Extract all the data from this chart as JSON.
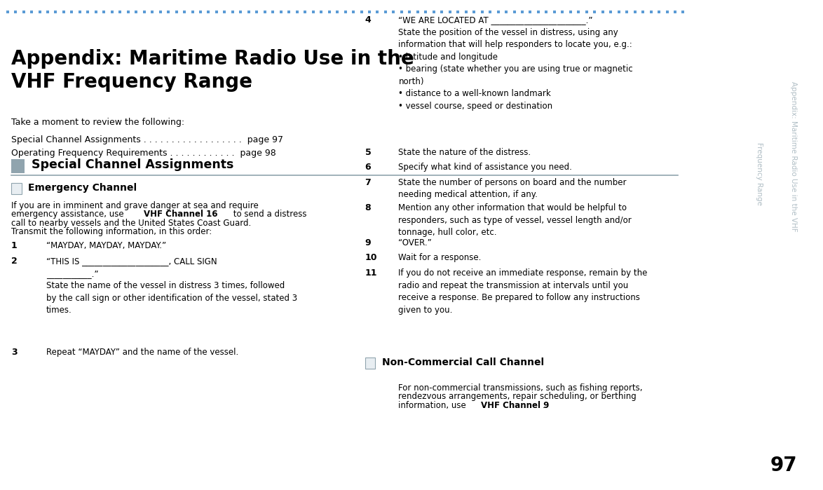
{
  "bg_color": "#ffffff",
  "sidebar_text_color": "#b0bec5",
  "page_number": "97",
  "top_dots_color": "#5b9bd5",
  "title": "Appendix: Maritime Radio Use in the\nVHF Frequency Range",
  "intro": "Take a moment to review the following:",
  "toc_line1": "Special Channel Assignments . . . . . . . . . . . . . . . . . .  page 97",
  "toc_line2": "Operating Frequency Requirements . . . . . . . . . . . .  page 98",
  "section_title": "Special Channel Assignments",
  "section_underline_color": "#90a4ae",
  "sub1_title": "Emergency Channel",
  "items": [
    {
      "num": "1",
      "text": "“MAYDAY, MAYDAY, MAYDAY.”"
    },
    {
      "num": "2",
      "text": "“THIS IS _____________________, CALL SIGN\n___________.”\nState the name of the vessel in distress 3 times, followed\nby the call sign or other identification of the vessel, stated 3\ntimes."
    },
    {
      "num": "3",
      "text": "Repeat “MAYDAY” and the name of the vessel."
    },
    {
      "num": "4",
      "text": "“WE ARE LOCATED AT _______________________.”\nState the position of the vessel in distress, using any\ninformation that will help responders to locate you, e.g.:\n• latitude and longitude\n• bearing (state whether you are using true or magnetic\nnorth)\n• distance to a well-known landmark\n• vessel course, speed or destination"
    },
    {
      "num": "5",
      "text": "State the nature of the distress."
    },
    {
      "num": "6",
      "text": "Specify what kind of assistance you need."
    },
    {
      "num": "7",
      "text": "State the number of persons on board and the number\nneeding medical attention, if any."
    },
    {
      "num": "8",
      "text": "Mention any other information that would be helpful to\nresponders, such as type of vessel, vessel length and/or\ntonnage, hull color, etc."
    },
    {
      "num": "9",
      "text": "“OVER.”"
    },
    {
      "num": "10",
      "text": "Wait for a response."
    },
    {
      "num": "11",
      "text": "If you do not receive an immediate response, remain by the\nradio and repeat the transmission at intervals until you\nreceive a response. Be prepared to follow any instructions\ngiven to you."
    }
  ],
  "sub2_title": "Non-Commercial Call Channel",
  "sub2_para_plain": "For non-commercial transmissions, such as fishing reports,\nrendezvous arrangements, repair scheduling, or berthing\ninformation, use ",
  "sub2_bold": "VHF Channel 9",
  "sub2_end": ".",
  "sidebar_line1": "Appendix: Maritime Radio Use in the VHF",
  "sidebar_line2": "Frequency Range"
}
